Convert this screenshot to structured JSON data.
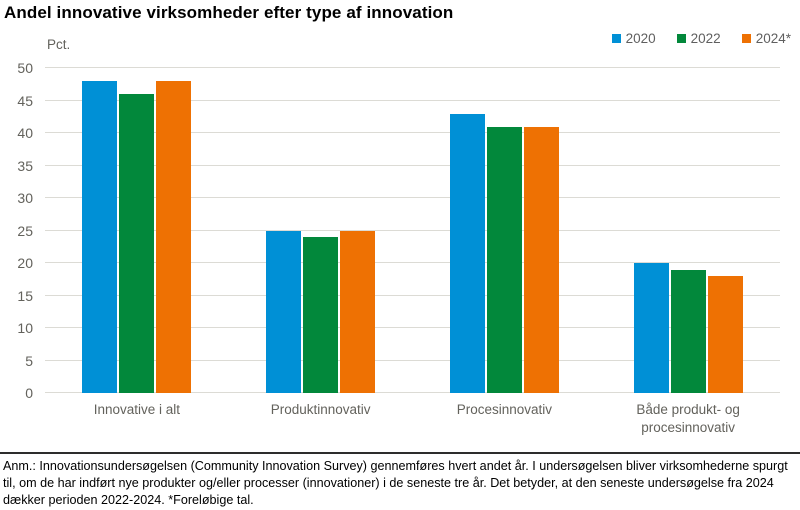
{
  "title": "Andel innovative virksomheder efter type af innovation",
  "footer": {
    "note": "Anm.: Innovationsundersøgelsen (Community Innovation Survey) gennemføres hvert andet år. I undersøgelsen bliver virksomhederne spurgt til, om de har indført nye produkter og/eller processer (innovationer) i de seneste tre år. Det betyder, at den seneste undersøgelse fra 2024 dækker perioden 2022-2024. *Foreløbige tal."
  },
  "chart_data": {
    "type": "bar",
    "title": "Andel innovative virksomheder efter type af innovation",
    "unit_label": "Pct.",
    "categories": [
      "Innovative i alt",
      "Produktinnovativ",
      "Procesinnovativ",
      "Både produkt- og procesinnovativ"
    ],
    "series": [
      {
        "name": "2020",
        "color": "#0090d6",
        "values": [
          48,
          25,
          43,
          20
        ]
      },
      {
        "name": "2022",
        "color": "#02883b",
        "values": [
          46,
          24,
          41,
          19
        ]
      },
      {
        "name": "2024*",
        "color": "#ee7103",
        "values": [
          48,
          25,
          41,
          18
        ]
      }
    ],
    "ylim": [
      0,
      50
    ],
    "ytick_step": 5,
    "grid": true,
    "legend_position": "top-right",
    "colors": {
      "gridline": "#dcdbd5",
      "axis_text": "#63625c",
      "legend_text": "#5f5f5f",
      "footnote_rule": "#2d2d2c"
    }
  }
}
